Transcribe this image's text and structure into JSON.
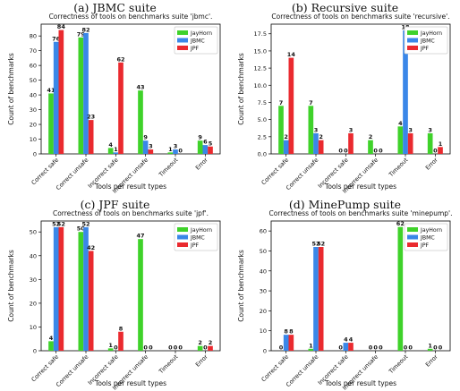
{
  "legend_labels": [
    "JayHorn",
    "JBMC",
    "JPF"
  ],
  "colors": {
    "JayHorn": "#3fd22a",
    "JBMC": "#3a87e8",
    "JPF": "#ea2a2f"
  },
  "chart_data": [
    {
      "type": "bar",
      "caption": "(a) JBMC suite",
      "title": "Correctness of tools on benchmarks suite 'jbmc'.",
      "xlabel": "Tools per result types",
      "ylabel": "Count of benchmarks",
      "categories": [
        "Correct safe",
        "Correct unsafe",
        "Incorrect safe",
        "Incorrect unsafe",
        "Timeout",
        "Error"
      ],
      "series": [
        {
          "name": "JayHorn",
          "values": [
            41,
            79,
            4,
            43,
            1,
            9
          ]
        },
        {
          "name": "JBMC",
          "values": [
            76,
            82,
            1,
            9,
            3,
            6
          ]
        },
        {
          "name": "JPF",
          "values": [
            84,
            23,
            62,
            3,
            0,
            5
          ]
        }
      ],
      "ylim": [
        0,
        88
      ],
      "yticks": [
        0,
        10,
        20,
        30,
        40,
        50,
        60,
        70,
        80
      ],
      "ytick_labels": [
        "0",
        "10",
        "20",
        "30",
        "40",
        "50",
        "60",
        "70",
        "80"
      ],
      "legend": "top-right",
      "grid": false
    },
    {
      "type": "bar",
      "caption": "(b) Recursive suite",
      "title": "Correctness of tools on benchmarks suite 'recursive'.",
      "xlabel": "Tools per result types",
      "ylabel": "Count of benchmarks",
      "categories": [
        "Correct safe",
        "Correct unsafe",
        "Incorrect safe",
        "Incorrect unsafe",
        "Timeout",
        "Error"
      ],
      "series": [
        {
          "name": "JayHorn",
          "values": [
            7,
            7,
            0,
            2,
            4,
            3
          ]
        },
        {
          "name": "JBMC",
          "values": [
            2,
            3,
            0,
            0,
            18,
            0
          ]
        },
        {
          "name": "JPF",
          "values": [
            14,
            2,
            3,
            0,
            3,
            1
          ]
        }
      ],
      "ylim": [
        0,
        18.9
      ],
      "yticks": [
        0,
        2.5,
        5,
        7.5,
        10,
        12.5,
        15,
        17.5
      ],
      "ytick_labels": [
        "0.0",
        "2.5",
        "5.0",
        "7.5",
        "10.0",
        "12.5",
        "15.0",
        "17.5"
      ],
      "legend": "top-right",
      "grid": false
    },
    {
      "type": "bar",
      "caption": "(c) JPF suite",
      "title": "Correctness of tools on benchmarks suite 'jpf'.",
      "xlabel": "Tools per result types",
      "ylabel": "Count of benchmarks",
      "categories": [
        "Correct safe",
        "Correct unsafe",
        "Incorrect safe",
        "Incorrect unsafe",
        "Timeout",
        "Error"
      ],
      "series": [
        {
          "name": "JayHorn",
          "values": [
            4,
            50,
            1,
            47,
            0,
            2
          ]
        },
        {
          "name": "JBMC",
          "values": [
            52,
            52,
            0,
            0,
            0,
            0
          ]
        },
        {
          "name": "JPF",
          "values": [
            52,
            42,
            8,
            0,
            0,
            2
          ]
        }
      ],
      "ylim": [
        0,
        54.6
      ],
      "yticks": [
        0,
        10,
        20,
        30,
        40,
        50
      ],
      "ytick_labels": [
        "0",
        "10",
        "20",
        "30",
        "40",
        "50"
      ],
      "legend": "top-right",
      "grid": false
    },
    {
      "type": "bar",
      "caption": "(d) MinePump suite",
      "title": "Correctness of tools on benchmarks suite 'minepump'.",
      "xlabel": "Tools per result types",
      "ylabel": "Count of benchmarks",
      "categories": [
        "Correct safe",
        "Correct unsafe",
        "Incorrect safe",
        "Incorrect unsafe",
        "Timeout",
        "Error"
      ],
      "series": [
        {
          "name": "JayHorn",
          "values": [
            0,
            1,
            0,
            0,
            62,
            1
          ]
        },
        {
          "name": "JBMC",
          "values": [
            8,
            52,
            4,
            0,
            0,
            0
          ]
        },
        {
          "name": "JPF",
          "values": [
            8,
            52,
            4,
            0,
            0,
            0
          ]
        }
      ],
      "ylim": [
        0,
        65
      ],
      "yticks": [
        0,
        10,
        20,
        30,
        40,
        50,
        60
      ],
      "ytick_labels": [
        "0",
        "10",
        "20",
        "30",
        "40",
        "50",
        "60"
      ],
      "legend": "top-right",
      "grid": false
    }
  ]
}
